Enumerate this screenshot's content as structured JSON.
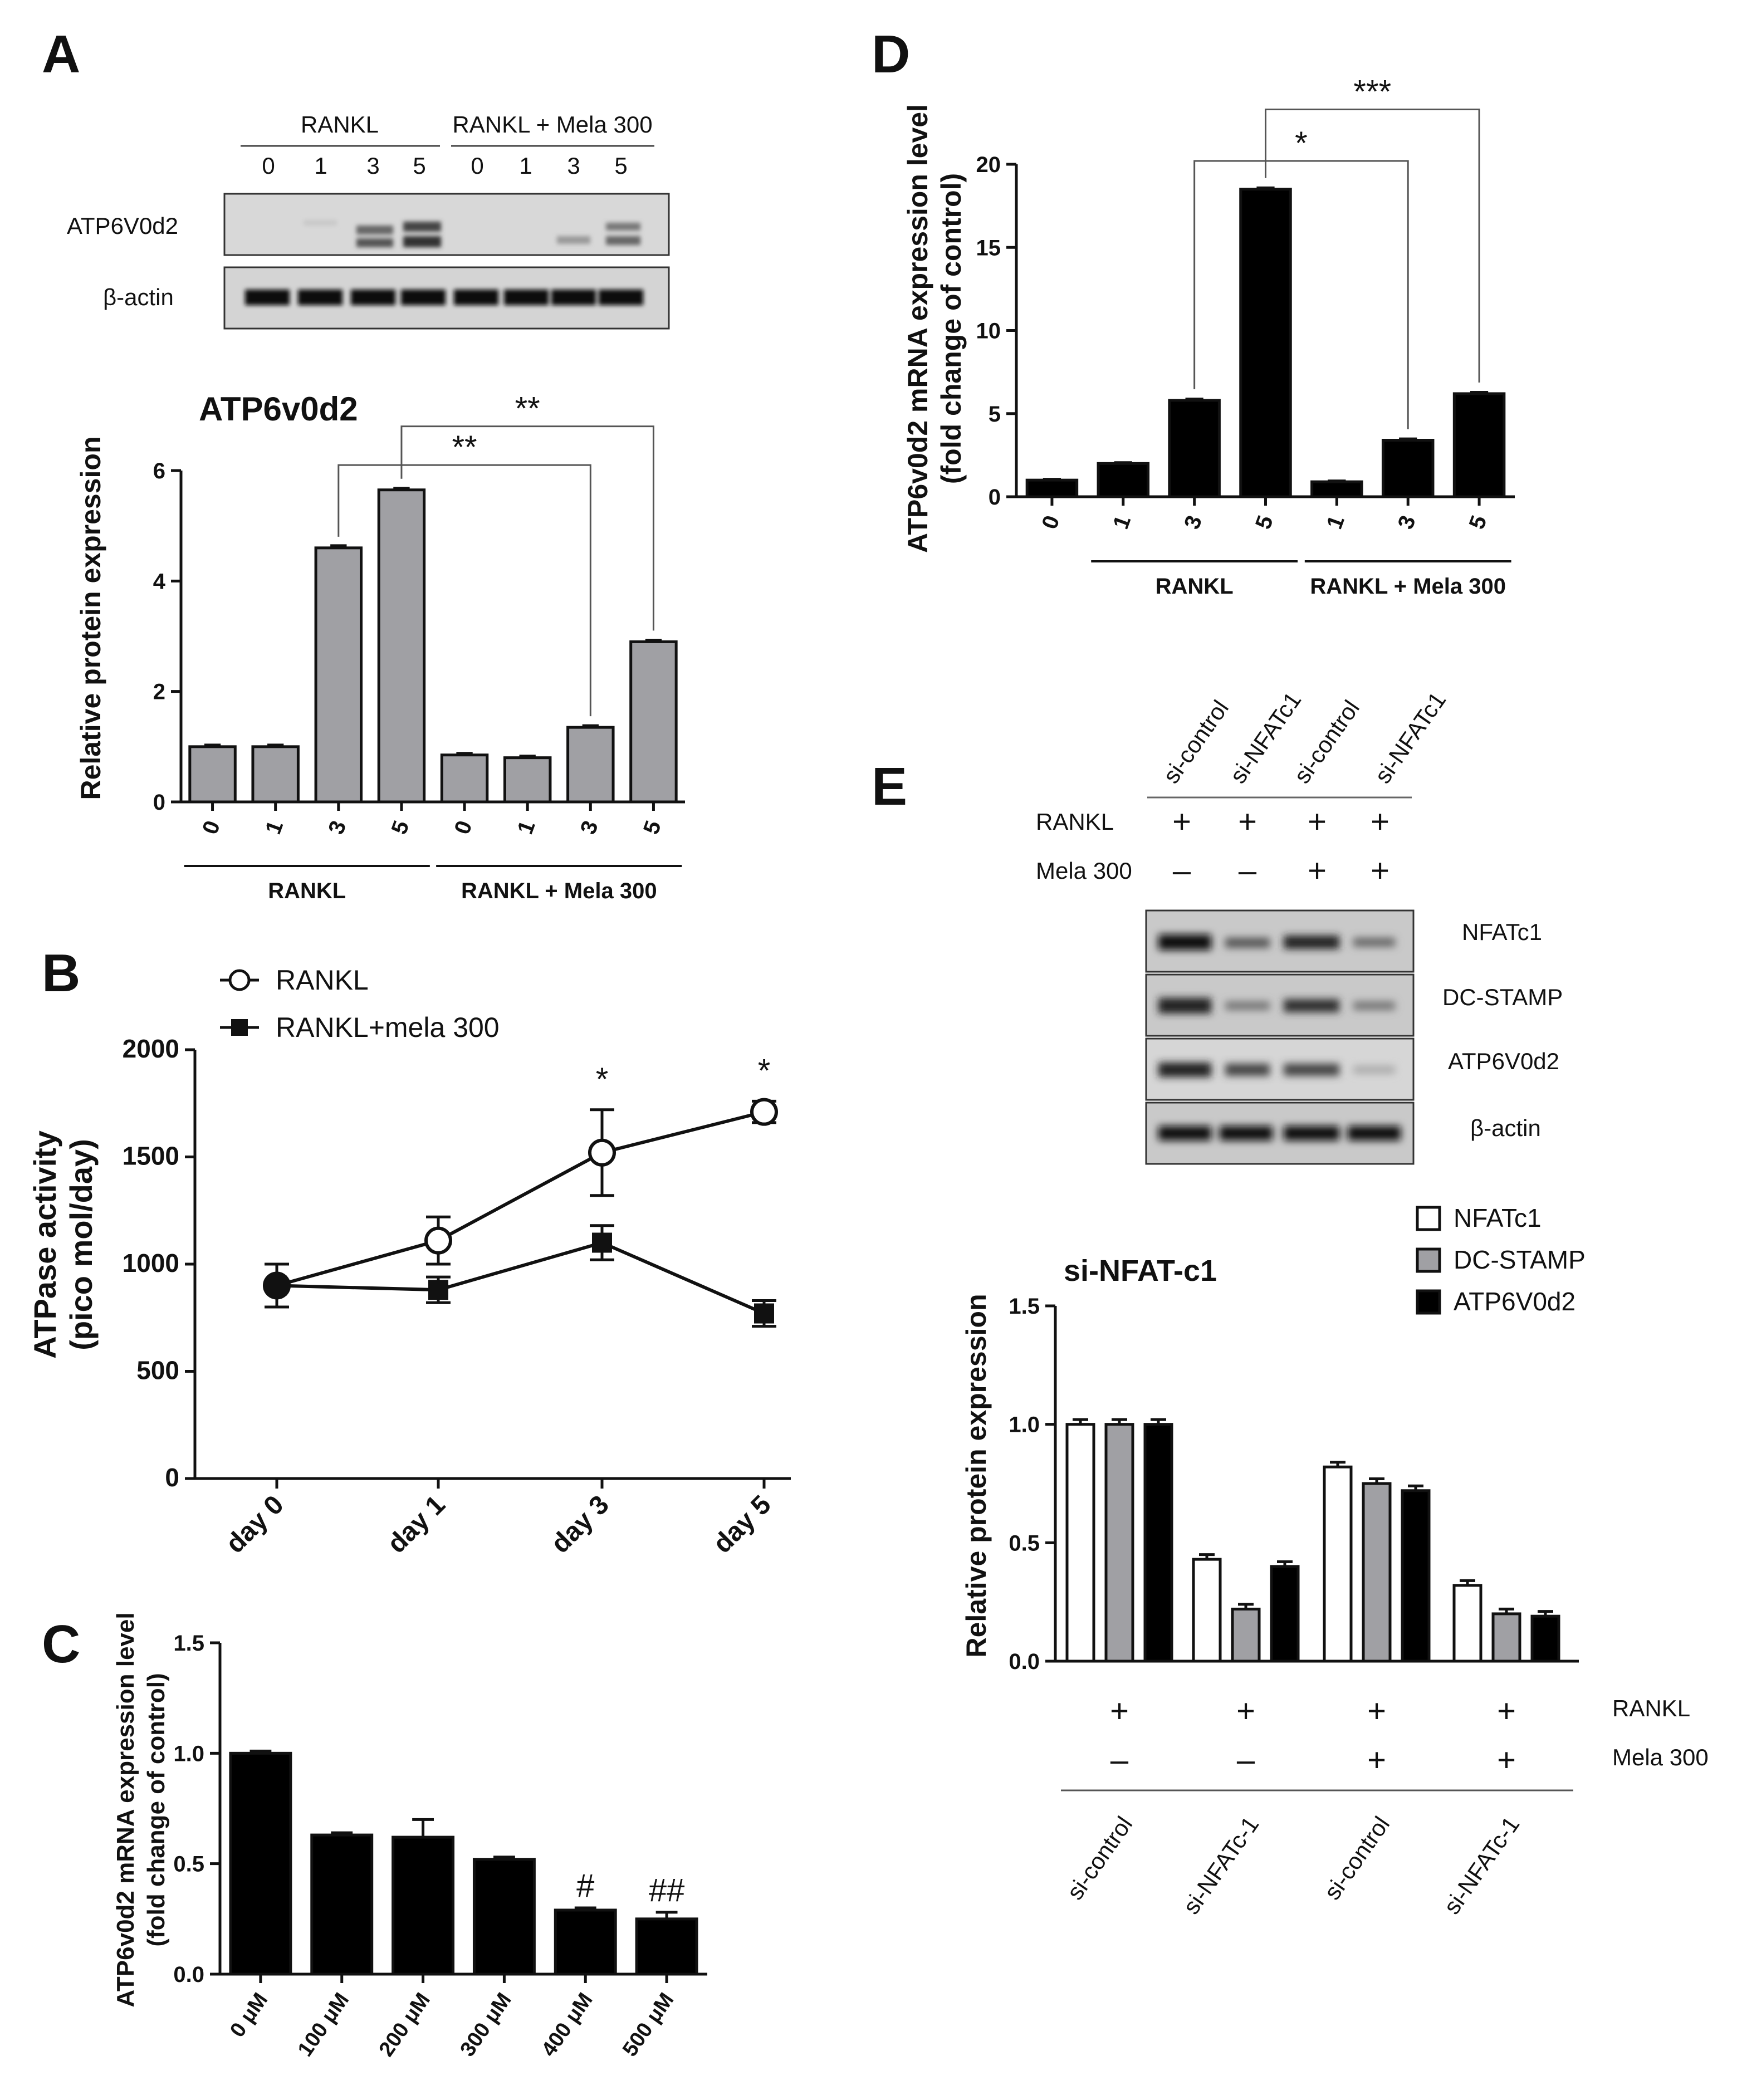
{
  "panels": {
    "A": {
      "label": "A",
      "blot": {
        "group_labels": [
          "RANKL",
          "RANKL + Mela 300"
        ],
        "lane_labels": [
          "0",
          "1",
          "3",
          "5",
          "0",
          "1",
          "3",
          "5"
        ],
        "rows": [
          "ATP6V0d2",
          "β-actin"
        ]
      }
    },
    "B": {
      "label": "B"
    },
    "C": {
      "label": "C"
    },
    "D": {
      "label": "D"
    },
    "E": {
      "label": "E",
      "blot": {
        "lane_labels": [
          "si-control",
          "si-NFATc1",
          "si-control",
          "si-NFATc1"
        ],
        "treatments": [
          {
            "name": "RANKL",
            "values": [
              "+",
              "+",
              "+",
              "+"
            ]
          },
          {
            "name": "Mela 300",
            "values": [
              "–",
              "–",
              "+",
              "+"
            ]
          }
        ],
        "rows": [
          "NFATc1",
          "DC-STAMP",
          "ATP6V0d2",
          "β-actin"
        ]
      }
    }
  },
  "chart_data": [
    {
      "id": "A",
      "type": "bar",
      "title": "ATP6v0d2",
      "ylabel": "Relative protein expression",
      "ylim": [
        0,
        6
      ],
      "yticks": [
        0,
        2,
        4,
        6
      ],
      "categories": [
        "0",
        "1",
        "3",
        "5",
        "0",
        "1",
        "3",
        "5"
      ],
      "values": [
        1.0,
        1.0,
        4.6,
        5.65,
        0.85,
        0.8,
        1.35,
        2.9
      ],
      "errors": [
        0.03,
        0.03,
        0.04,
        0.03,
        0.03,
        0.03,
        0.03,
        0.03
      ],
      "bar_color": "#a0a0a4",
      "groups": [
        {
          "label": "RANKL",
          "from": 0,
          "to": 3
        },
        {
          "label": "RANKL + Mela 300",
          "from": 4,
          "to": 7
        }
      ],
      "significance": [
        {
          "label": "**",
          "from": 2,
          "to": 6,
          "level": 6.1
        },
        {
          "label": "**",
          "from": 3,
          "to": 7,
          "level": 6.8
        }
      ]
    },
    {
      "id": "B",
      "type": "line",
      "ylabel": "ATPase activity",
      "ylabel2": "(pico mol/day)",
      "ylim": [
        0,
        2000
      ],
      "yticks": [
        0,
        500,
        1000,
        1500,
        2000
      ],
      "categories": [
        "day 0",
        "day 1",
        "day 3",
        "day 5"
      ],
      "series": [
        {
          "name": "RANKL",
          "marker": "open-circle",
          "values": [
            900,
            1110,
            1520,
            1710
          ],
          "errors": [
            100,
            110,
            200,
            50
          ]
        },
        {
          "name": "RANKL+mela 300",
          "marker": "filled-square",
          "values": [
            900,
            880,
            1100,
            770
          ],
          "errors": [
            100,
            60,
            80,
            60
          ]
        }
      ],
      "annotations": [
        {
          "label": "*",
          "index": 2
        },
        {
          "label": "*",
          "index": 3
        }
      ]
    },
    {
      "id": "C",
      "type": "bar",
      "ylabel": "ATP6v0d2 mRNA expression level",
      "ylabel2": "(fold change of control)",
      "ylim": [
        0,
        1.5
      ],
      "yticks": [
        "0.0",
        "0.5",
        "1.0",
        "1.5"
      ],
      "categories": [
        "0 μM",
        "100 μM",
        "200 μM",
        "300 μM",
        "400 μM",
        "500 μM"
      ],
      "values": [
        1.0,
        0.63,
        0.62,
        0.52,
        0.29,
        0.25
      ],
      "errors": [
        0.01,
        0.01,
        0.08,
        0.01,
        0.01,
        0.03
      ],
      "bar_color": "#000000",
      "annotations": [
        {
          "label": "#",
          "index": 4
        },
        {
          "label": "##",
          "index": 5
        }
      ]
    },
    {
      "id": "D",
      "type": "bar",
      "ylabel": "ATP6v0d2 mRNA expression level",
      "ylabel2": "(fold change of control)",
      "ylim": [
        0,
        20
      ],
      "yticks": [
        0,
        5,
        10,
        15,
        20
      ],
      "categories": [
        "0",
        "1",
        "3",
        "5",
        "1",
        "3",
        "5"
      ],
      "values": [
        1.0,
        2.0,
        5.8,
        18.5,
        0.9,
        3.4,
        6.2
      ],
      "errors": [
        0.05,
        0.05,
        0.08,
        0.08,
        0.05,
        0.08,
        0.08
      ],
      "bar_color": "#000000",
      "groups": [
        {
          "label": "RANKL",
          "from": 1,
          "to": 3
        },
        {
          "label": "RANKL + Mela 300",
          "from": 4,
          "to": 6
        }
      ],
      "significance": [
        {
          "label": "*",
          "from": 2,
          "to": 5,
          "level": 20.2
        },
        {
          "label": "***",
          "from": 3,
          "to": 6,
          "level": 23.3
        }
      ]
    },
    {
      "id": "E",
      "type": "bar",
      "title": "si-NFAT-c1",
      "ylabel": "Relative protein expression",
      "ylim": [
        0,
        1.5
      ],
      "yticks": [
        "0.0",
        "0.5",
        "1.0",
        "1.5"
      ],
      "categories": [
        "si-control",
        "si-NFATc-1",
        "si-control",
        "si-NFATc-1"
      ],
      "series": [
        {
          "name": "NFATc1",
          "color": "#ffffff",
          "values": [
            1.0,
            0.43,
            0.82,
            0.32
          ],
          "errors": [
            0.02,
            0.02,
            0.02,
            0.02
          ]
        },
        {
          "name": "DC-STAMP",
          "color": "#a0a0a4",
          "values": [
            1.0,
            0.22,
            0.75,
            0.2
          ],
          "errors": [
            0.02,
            0.02,
            0.02,
            0.02
          ]
        },
        {
          "name": "ATP6V0d2",
          "color": "#000000",
          "values": [
            1.0,
            0.4,
            0.72,
            0.19
          ],
          "errors": [
            0.02,
            0.02,
            0.02,
            0.02
          ]
        }
      ],
      "treatments": [
        {
          "name": "RANKL",
          "values": [
            "+",
            "+",
            "+",
            "+"
          ]
        },
        {
          "name": "Mela 300",
          "values": [
            "–",
            "–",
            "+",
            "+"
          ]
        }
      ],
      "legend": "top-right"
    }
  ]
}
